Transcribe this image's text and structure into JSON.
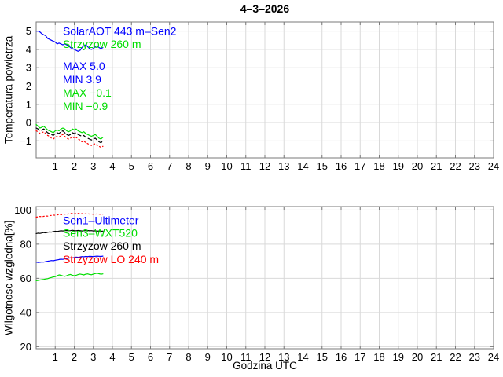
{
  "page": {
    "background": "#ffffff"
  },
  "chart_data": [
    {
      "type": "line",
      "title": "4–3–2026",
      "ylabel": "Temperatura powietrza",
      "xlabel": "",
      "xlim": [
        0,
        24
      ],
      "ylim": [
        -1.93,
        5.5
      ],
      "xticks": [
        1,
        2,
        3,
        4,
        5,
        6,
        7,
        8,
        9,
        10,
        11,
        12,
        13,
        14,
        15,
        16,
        17,
        18,
        19,
        20,
        21,
        22,
        23,
        24
      ],
      "yticks": [
        -1,
        0,
        1,
        2,
        3,
        4,
        5
      ],
      "yticklabels": [
        "−1",
        "0",
        "1",
        "2",
        "3",
        "4",
        "5"
      ],
      "grid": true,
      "grid_color": "#d9d9d9",
      "axis_color": "#7a7a7a",
      "x_start": 0,
      "x_step": 0.1,
      "series": [
        {
          "name": "SolarAOT 443 m–Sen2",
          "color": "#0000ff",
          "style": "solid",
          "values": [
            5.0,
            5.0,
            4.95,
            4.85,
            4.8,
            4.75,
            4.6,
            4.55,
            4.5,
            4.45,
            4.4,
            4.3,
            4.35,
            4.3,
            4.25,
            4.3,
            4.25,
            4.2,
            4.1,
            4.05,
            4.0,
            3.95,
            3.9,
            3.95,
            4.1,
            4.2,
            4.25,
            4.15,
            4.05,
            4.0,
            4.05,
            4.15,
            4.2,
            4.1,
            4.05,
            4.1
          ]
        },
        {
          "name": "Strzyzow 260 m",
          "color": "#00dd00",
          "style": "solid",
          "values": [
            -0.1,
            -0.2,
            -0.3,
            -0.25,
            -0.2,
            -0.3,
            -0.4,
            -0.45,
            -0.5,
            -0.55,
            -0.45,
            -0.4,
            -0.45,
            -0.35,
            -0.3,
            -0.35,
            -0.45,
            -0.5,
            -0.45,
            -0.35,
            -0.4,
            -0.35,
            -0.45,
            -0.5,
            -0.55,
            -0.5,
            -0.6,
            -0.65,
            -0.7,
            -0.75,
            -0.7,
            -0.65,
            -0.75,
            -0.85,
            -0.9,
            -0.8
          ]
        },
        {
          "name": "Strzyzow 260 m (dashed)",
          "color": "#000000",
          "style": "dashed",
          "values": [
            -0.3,
            -0.35,
            -0.45,
            -0.4,
            -0.35,
            -0.45,
            -0.55,
            -0.6,
            -0.65,
            -0.7,
            -0.6,
            -0.55,
            -0.6,
            -0.5,
            -0.45,
            -0.55,
            -0.65,
            -0.7,
            -0.65,
            -0.55,
            -0.6,
            -0.55,
            -0.65,
            -0.7,
            -0.75,
            -0.7,
            -0.8,
            -0.85,
            -0.9,
            -0.95,
            -0.9,
            -0.85,
            -0.95,
            -1.05,
            -1.1,
            -1.0
          ]
        },
        {
          "name": "Strzyzow LO 240 m (dotted)",
          "color": "#ff0000",
          "style": "dotted",
          "values": [
            -0.45,
            -0.5,
            -0.6,
            -0.55,
            -0.5,
            -0.6,
            -0.7,
            -0.75,
            -0.85,
            -0.9,
            -0.8,
            -0.75,
            -0.8,
            -0.7,
            -0.65,
            -0.75,
            -0.85,
            -0.9,
            -0.85,
            -0.75,
            -0.85,
            -0.8,
            -0.9,
            -0.95,
            -1.05,
            -1.0,
            -1.1,
            -1.15,
            -1.2,
            -1.25,
            -1.2,
            -1.15,
            -1.25,
            -1.3,
            -1.35,
            -1.3
          ]
        }
      ],
      "annotations": [
        {
          "label": "SolarAOT 443 m–Sen2",
          "color": "#0000ff",
          "x": 1.4,
          "y": 5.0
        },
        {
          "label": "Strzyzow 260 m",
          "color": "#00dd00",
          "x": 1.4,
          "y": 4.3
        },
        {
          "label": "MAX 5.0",
          "color": "#0000ff",
          "x": 1.4,
          "y": 3.1
        },
        {
          "label": "MIN 3.9",
          "color": "#0000ff",
          "x": 1.4,
          "y": 2.37
        },
        {
          "label": "MAX −0.1",
          "color": "#00dd00",
          "x": 1.4,
          "y": 1.63
        },
        {
          "label": "MIN −0.9",
          "color": "#00dd00",
          "x": 1.4,
          "y": 0.9
        }
      ]
    },
    {
      "type": "line",
      "title": "",
      "ylabel": "Wilgotnosc wzgledna[%]",
      "xlabel": "Godzina UTC",
      "xlim": [
        0,
        24
      ],
      "ylim": [
        18.8,
        102
      ],
      "xticks": [
        1,
        2,
        3,
        4,
        5,
        6,
        7,
        8,
        9,
        10,
        11,
        12,
        13,
        14,
        15,
        16,
        17,
        18,
        19,
        20,
        21,
        22,
        23,
        24
      ],
      "yticks": [
        20,
        40,
        60,
        80,
        100
      ],
      "yticklabels": [
        "20",
        "40",
        "60",
        "80",
        "100"
      ],
      "grid": true,
      "grid_color": "#d9d9d9",
      "axis_color": "#7a7a7a",
      "x_start": 0,
      "x_step": 0.1,
      "series": [
        {
          "name": "Strzyzow LO 240 m",
          "color": "#ff0000",
          "style": "dotted",
          "values": [
            95.8,
            96.0,
            96.2,
            96.0,
            96.3,
            96.5,
            96.4,
            96.6,
            96.8,
            97.0,
            96.9,
            97.1,
            97.3,
            97.2,
            97.4,
            97.6,
            97.5,
            97.7,
            97.9,
            98.0,
            97.8,
            97.9,
            98.0,
            97.9,
            97.8,
            97.9,
            97.7,
            97.8,
            97.6,
            97.7,
            97.5,
            97.6,
            97.7,
            97.6,
            97.5,
            97.6
          ]
        },
        {
          "name": "Strzyzow 260 m",
          "color": "#000000",
          "style": "solid",
          "values": [
            86.2,
            86.4,
            86.3,
            86.5,
            86.8,
            86.6,
            86.9,
            87.1,
            87.0,
            87.3,
            87.5,
            87.4,
            87.6,
            87.8,
            87.7,
            87.9,
            88.0,
            87.8,
            87.9,
            88.1,
            87.9,
            87.8,
            88.0,
            87.9,
            87.7,
            87.8,
            87.9,
            88.0,
            87.8,
            87.9,
            87.7,
            87.8,
            87.6,
            87.7,
            87.5,
            87.6
          ]
        },
        {
          "name": "Sen1–Ultimeter",
          "color": "#0000ff",
          "style": "solid",
          "values": [
            69.5,
            69.3,
            69.4,
            69.6,
            69.5,
            69.8,
            70.0,
            70.2,
            70.4,
            70.3,
            70.6,
            70.8,
            71.0,
            71.2,
            71.1,
            71.4,
            71.6,
            71.8,
            72.0,
            71.9,
            72.2,
            72.4,
            72.3,
            72.5,
            72.7,
            72.6,
            72.8,
            72.7,
            72.9,
            72.8,
            72.7,
            72.9,
            73.0,
            72.9,
            72.8,
            73.0
          ]
        },
        {
          "name": "Sen3–WXT520",
          "color": "#00dd00",
          "style": "solid",
          "values": [
            58.6,
            58.8,
            59.0,
            59.2,
            59.4,
            59.6,
            59.8,
            60.2,
            60.5,
            60.8,
            61.0,
            61.5,
            62.0,
            61.8,
            61.4,
            61.2,
            61.5,
            62.0,
            62.3,
            61.8,
            61.5,
            61.8,
            62.2,
            62.5,
            62.3,
            62.0,
            62.4,
            62.6,
            62.3,
            62.1,
            62.5,
            62.8,
            63.0,
            62.7,
            62.4,
            62.6
          ]
        }
      ],
      "annotations": [
        {
          "label": "Sen1–Ultimeter",
          "color": "#0000ff",
          "x": 1.4,
          "y": 94.0
        },
        {
          "label": "Sen3–WXT520",
          "color": "#00dd00",
          "x": 1.4,
          "y": 86.5
        },
        {
          "label": "Strzyzow 260 m",
          "color": "#000000",
          "x": 1.4,
          "y": 79.0
        },
        {
          "label": "Strzyzow LO 240 m",
          "color": "#ff0000",
          "x": 1.4,
          "y": 71.3
        }
      ]
    }
  ]
}
